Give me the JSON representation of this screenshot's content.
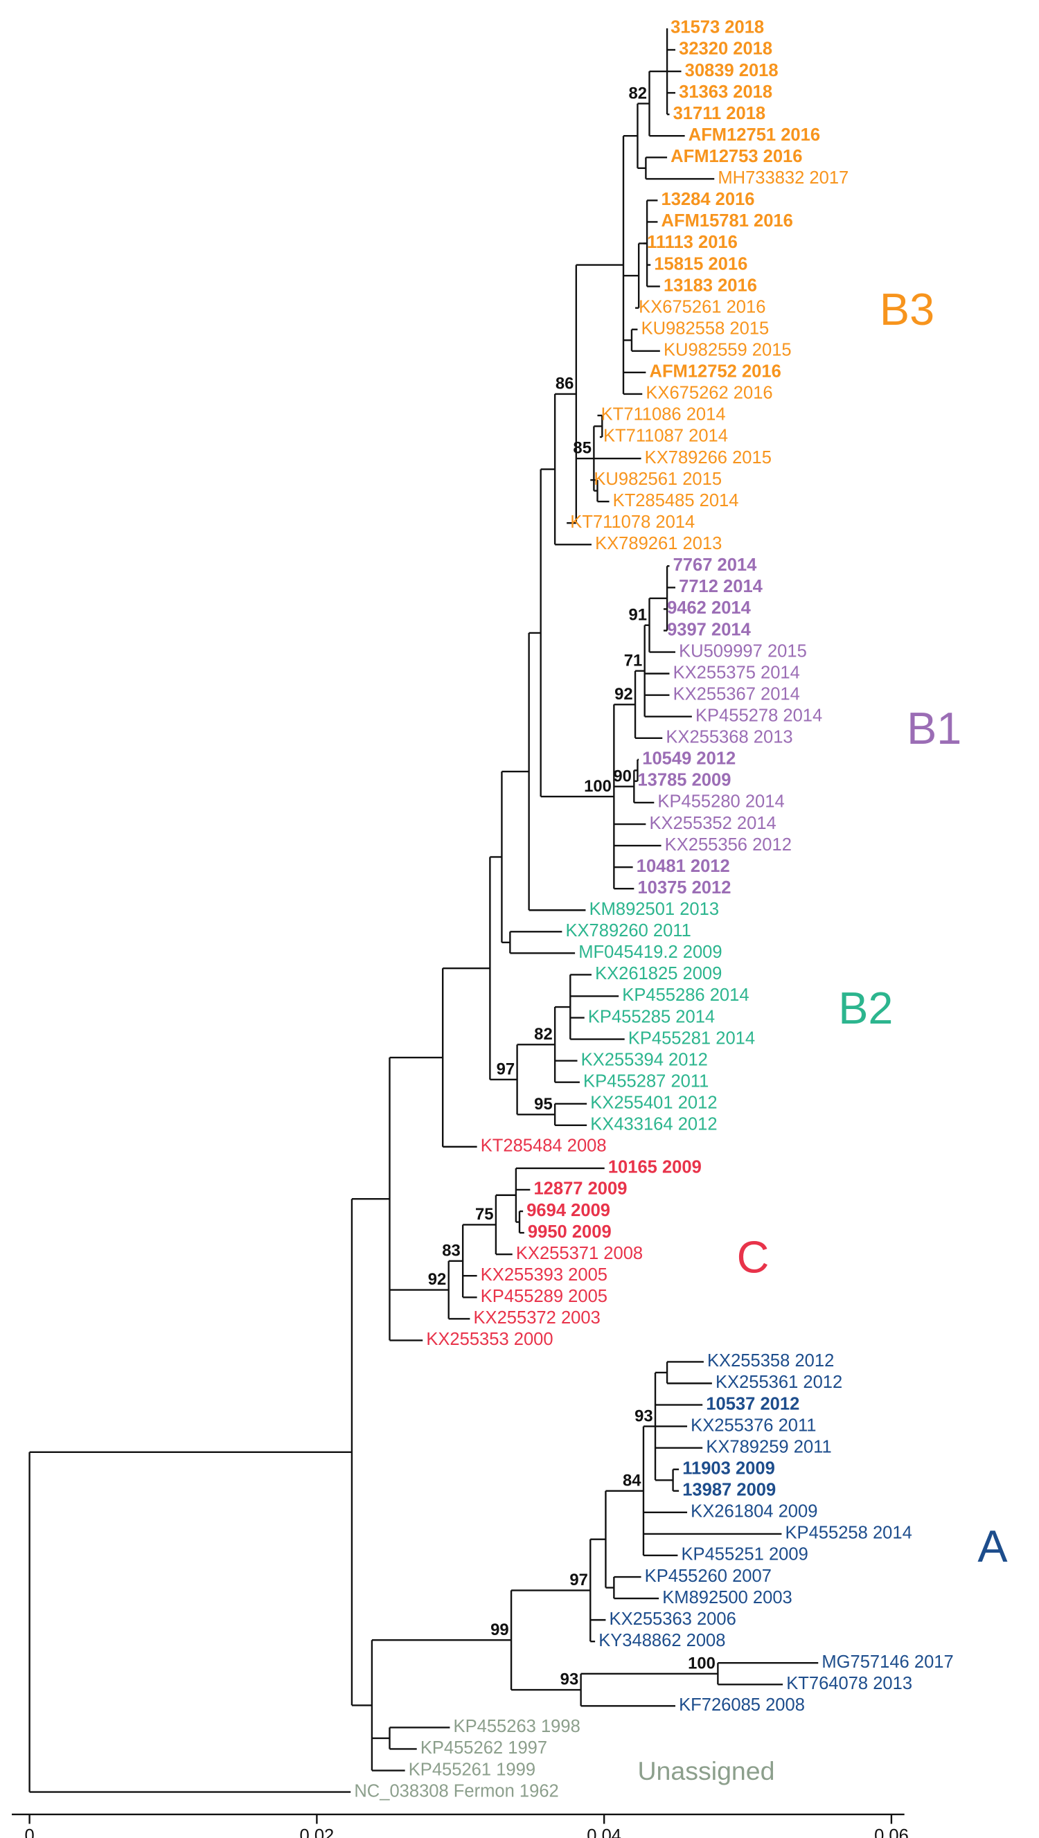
{
  "tree": {
    "clades": [
      {
        "name": "B3",
        "color": "#f7941d",
        "leaves": [
          {
            "label": "31573 2018",
            "bold": true
          },
          {
            "label": "32320 2018",
            "bold": true
          },
          {
            "label": "30839 2018",
            "bold": true
          },
          {
            "label": "31363 2018",
            "bold": true
          },
          {
            "label": "31711 2018",
            "bold": true
          },
          {
            "label": "AFM12751 2016",
            "bold": true
          },
          {
            "label": "AFM12753 2016",
            "bold": true
          },
          {
            "label": "MH733832 2017"
          },
          {
            "label": "13284 2016",
            "bold": true
          },
          {
            "label": "AFM15781 2016",
            "bold": true
          },
          {
            "label": "11113 2016",
            "bold": true
          },
          {
            "label": "15815 2016",
            "bold": true
          },
          {
            "label": "13183 2016",
            "bold": true
          },
          {
            "label": "KX675261 2016"
          },
          {
            "label": "KU982558 2015"
          },
          {
            "label": "KU982559 2015"
          },
          {
            "label": "AFM12752 2016",
            "bold": true
          },
          {
            "label": "KX675262 2016"
          },
          {
            "label": "KT711086 2014"
          },
          {
            "label": "KT711087 2014"
          },
          {
            "label": "KX789266 2015"
          },
          {
            "label": "KU982561 2015"
          },
          {
            "label": "KT285485 2014"
          },
          {
            "label": "KT711078 2014"
          },
          {
            "label": "KX789261 2013"
          }
        ]
      },
      {
        "name": "B1",
        "color": "#9b6db5",
        "leaves": [
          {
            "label": "7767 2014",
            "bold": true
          },
          {
            "label": "7712 2014",
            "bold": true
          },
          {
            "label": "9462 2014",
            "bold": true
          },
          {
            "label": "9397 2014",
            "bold": true
          },
          {
            "label": "KU509997 2015"
          },
          {
            "label": "KX255375 2014"
          },
          {
            "label": "KX255367 2014"
          },
          {
            "label": "KP455278 2014"
          },
          {
            "label": "KX255368 2013"
          },
          {
            "label": "10549 2012",
            "bold": true
          },
          {
            "label": "13785 2009",
            "bold": true
          },
          {
            "label": "KP455280 2014"
          },
          {
            "label": "KX255352 2014"
          },
          {
            "label": "KX255356 2012"
          },
          {
            "label": "10481 2012",
            "bold": true
          },
          {
            "label": "10375 2012",
            "bold": true
          }
        ]
      },
      {
        "name": "B2",
        "color": "#2cb58e",
        "leaves": [
          {
            "label": "KM892501 2013"
          },
          {
            "label": "KX789260 2011"
          },
          {
            "label": "MF045419.2 2009"
          },
          {
            "label": "KX261825 2009"
          },
          {
            "label": "KP455286 2014"
          },
          {
            "label": "KP455285 2014"
          },
          {
            "label": "KP455281 2014"
          },
          {
            "label": "KX255394 2012"
          },
          {
            "label": "KP455287 2011"
          },
          {
            "label": "KX255401 2012"
          },
          {
            "label": "KX433164 2012"
          }
        ]
      },
      {
        "name": "C",
        "color": "#e8334a",
        "leaves": [
          {
            "label": "KT285484 2008"
          },
          {
            "label": "10165 2009",
            "bold": true
          },
          {
            "label": "12877 2009",
            "bold": true
          },
          {
            "label": "9694 2009",
            "bold": true
          },
          {
            "label": "9950 2009",
            "bold": true
          },
          {
            "label": "KX255371 2008"
          },
          {
            "label": "KX255393 2005"
          },
          {
            "label": "KP455289 2005"
          },
          {
            "label": "KX255372 2003"
          },
          {
            "label": "KX255353 2000"
          }
        ]
      },
      {
        "name": "A",
        "color": "#1d4d8c",
        "leaves": [
          {
            "label": "KX255358 2012"
          },
          {
            "label": "KX255361 2012"
          },
          {
            "label": "10537 2012",
            "bold": true
          },
          {
            "label": "KX255376 2011"
          },
          {
            "label": "KX789259 2011"
          },
          {
            "label": "11903 2009",
            "bold": true
          },
          {
            "label": "13987 2009",
            "bold": true
          },
          {
            "label": "KX261804 2009"
          },
          {
            "label": "KP455258 2014"
          },
          {
            "label": "KP455251 2009"
          },
          {
            "label": "KP455260 2007"
          },
          {
            "label": "KM892500 2003"
          },
          {
            "label": "KX255363 2006"
          },
          {
            "label": "KY348862 2008"
          },
          {
            "label": "MG757146 2017"
          },
          {
            "label": "KT764078 2013"
          },
          {
            "label": "KF726085 2008"
          }
        ]
      },
      {
        "name": "Unassigned",
        "color": "#8c9f8c",
        "leaves": [
          {
            "label": "KP455263 1998"
          },
          {
            "label": "KP455262 1997"
          },
          {
            "label": "KP455261 1999"
          },
          {
            "label": "NC_038308 Fermon 1962"
          }
        ]
      }
    ],
    "support": [
      82,
      86,
      85,
      91,
      71,
      92,
      90,
      100,
      82,
      97,
      95,
      75,
      83,
      92,
      93,
      84,
      97,
      99,
      93,
      100
    ],
    "axis": {
      "ticks": [
        0,
        0.02,
        0.04,
        0.06
      ]
    }
  }
}
